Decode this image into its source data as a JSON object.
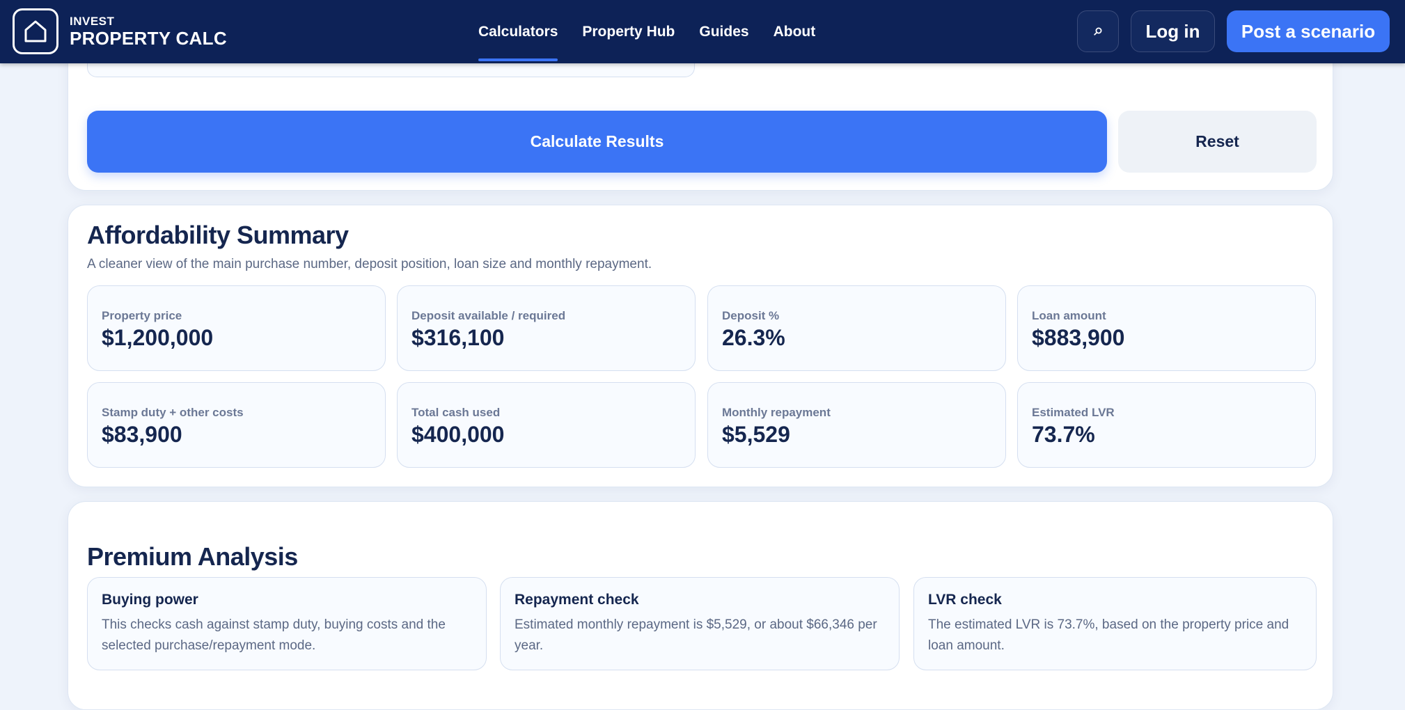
{
  "header": {
    "logo_small": "INVEST",
    "logo_big": "PROPERTY CALC",
    "nav": [
      {
        "label": "Calculators",
        "active": true
      },
      {
        "label": "Property Hub",
        "active": false
      },
      {
        "label": "Guides",
        "active": false
      },
      {
        "label": "About",
        "active": false
      }
    ],
    "search_icon": "search-icon",
    "login_label": "Log in",
    "post_label": "Post a scenario"
  },
  "actions": {
    "calculate_label": "Calculate Results",
    "reset_label": "Reset"
  },
  "summary": {
    "title": "Affordability Summary",
    "subtitle": "A cleaner view of the main purchase number, deposit position, loan size and monthly repayment.",
    "stats": [
      {
        "label": "Property price",
        "value": "$1,200,000"
      },
      {
        "label": "Deposit available / required",
        "value": "$316,100"
      },
      {
        "label": "Deposit %",
        "value": "26.3%"
      },
      {
        "label": "Loan amount",
        "value": "$883,900"
      },
      {
        "label": "Stamp duty + other costs",
        "value": "$83,900"
      },
      {
        "label": "Total cash used",
        "value": "$400,000"
      },
      {
        "label": "Monthly repayment",
        "value": "$5,529"
      },
      {
        "label": "Estimated LVR",
        "value": "73.7%"
      }
    ]
  },
  "premium": {
    "title": "Premium Analysis",
    "cards": [
      {
        "title": "Buying power",
        "text": "This checks cash against stamp duty, buying costs and the selected purchase/repayment mode."
      },
      {
        "title": "Repayment check",
        "text": "Estimated monthly repayment is $5,529, or about $66,346 per year."
      },
      {
        "title": "LVR check",
        "text": "The estimated LVR is 73.7%, based on the property price and loan amount."
      }
    ]
  },
  "colors": {
    "nav_bg": "#0d2257",
    "accent": "#3b74f5",
    "page_bg": "#eef3fb"
  }
}
